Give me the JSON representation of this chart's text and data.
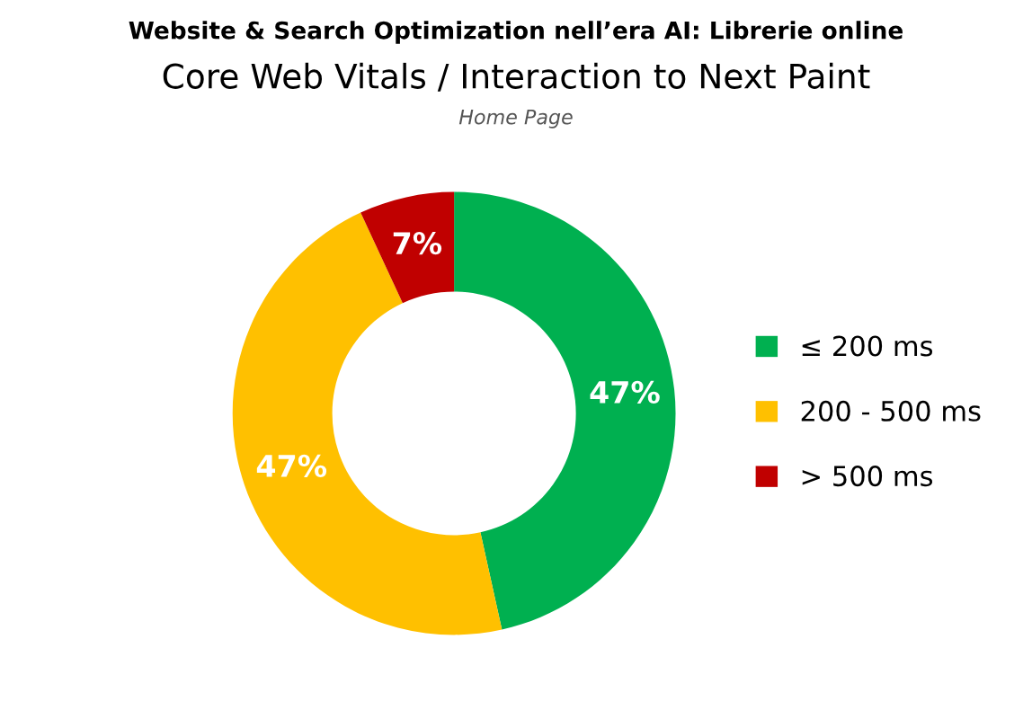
{
  "chart_data": {
    "type": "donut",
    "title": "Website & Search Optimization nell’era AI: Librerie online",
    "subtitle": "Core Web Vitals / Interaction to Next Paint",
    "annotations": [
      "Home Page"
    ],
    "categories": [
      "≤ 200 ms",
      "200 - 500 ms",
      "> 500 ms"
    ],
    "values": [
      47,
      47,
      7
    ],
    "colors": [
      "#00b050",
      "#ffc000",
      "#c00000"
    ],
    "value_labels": [
      "47%",
      "47%",
      "7%"
    ],
    "legend": "right"
  }
}
